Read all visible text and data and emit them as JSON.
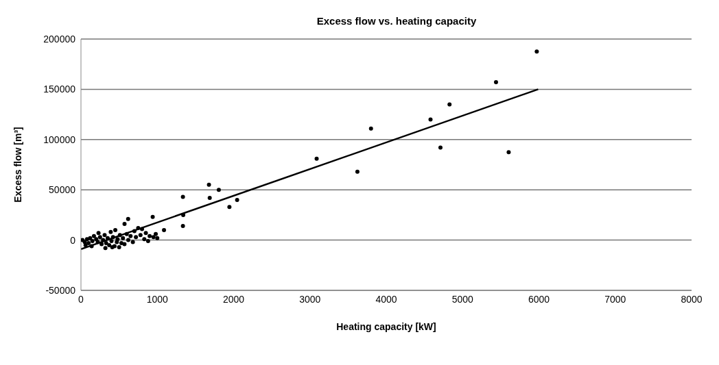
{
  "chart_data": {
    "type": "scatter",
    "title": "Excess flow vs. heating capacity",
    "xlabel": "Heating capacity [kW]",
    "ylabel": "Excess flow [m³]",
    "xlim": [
      0,
      8000
    ],
    "xticks": [
      0,
      1000,
      2000,
      3000,
      4000,
      5000,
      6000,
      7000,
      8000
    ],
    "ylim": [
      -50000,
      200000
    ],
    "yticks": [
      -50000,
      0,
      50000,
      100000,
      150000,
      200000
    ],
    "grid": "y",
    "marker": "circle",
    "series": [
      {
        "color": "#000000",
        "x": [
          20,
          50,
          80,
          100,
          120,
          150,
          170,
          200,
          220,
          230,
          250,
          270,
          290,
          310,
          330,
          350,
          370,
          390,
          400,
          420,
          440,
          450,
          470,
          480,
          500,
          510,
          530,
          550,
          570,
          600,
          620,
          650,
          680,
          700,
          720,
          750,
          780,
          800,
          830,
          850,
          880,
          900,
          950,
          980,
          1000,
          60,
          140,
          320,
          410,
          571,
          618,
          940,
          1088,
          1336,
          1336,
          1340,
          1677,
          1687,
          1806,
          1945,
          2046,
          3088,
          3622,
          3800,
          4580,
          4710,
          4829,
          5438,
          5604,
          5972
        ],
        "values": [
          0,
          -2000,
          1000,
          -3000,
          2000,
          -1000,
          4000,
          1000,
          -2000,
          7000,
          3000,
          -4000,
          0,
          5000,
          -3000,
          2000,
          -5000,
          8000,
          -1000,
          3000,
          -6000,
          10000,
          -2000,
          1000,
          -7000,
          5000,
          -3000,
          2000,
          -4000,
          6000,
          0,
          4000,
          -2000,
          9000,
          3000,
          12000,
          5000,
          11000,
          1000,
          7000,
          -1000,
          4000,
          3000,
          6000,
          2000,
          -5000,
          -6000,
          -8000,
          -7000,
          16000,
          21000,
          23000,
          10000,
          43000,
          14000,
          25000,
          55000,
          42000,
          50000,
          33000,
          40000,
          81000,
          68000,
          111000,
          120000,
          92000,
          135000,
          157000,
          87500,
          187500
        ]
      },
      {
        "type": "line",
        "color": "#000000",
        "marker": "none",
        "line_style": "solid",
        "x": [
          0,
          5990
        ],
        "values": [
          -9000,
          150000
        ]
      }
    ]
  }
}
